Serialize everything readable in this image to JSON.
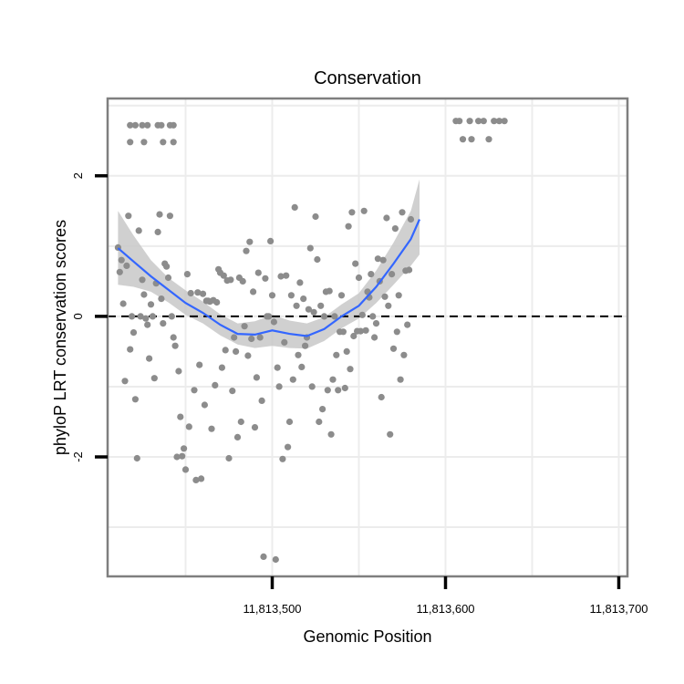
{
  "chart_data": {
    "type": "scatter",
    "title": "Conservation",
    "xlabel": "Genomic Position",
    "ylabel": "phyloP LRT conservation scores",
    "xlim": [
      11813405,
      11813705
    ],
    "ylim": [
      -3.7,
      3.1
    ],
    "x_ticks": [
      {
        "value": 11813500,
        "label": "11,813,500"
      },
      {
        "value": 11813600,
        "label": "11,813,600"
      },
      {
        "value": 11813700,
        "label": "11,813,700"
      }
    ],
    "y_ticks": [
      {
        "value": -2,
        "label": "-2"
      },
      {
        "value": 0,
        "label": "0"
      },
      {
        "value": 2,
        "label": "2"
      }
    ],
    "minor_grid_x": [
      11813450,
      11813550,
      11813650
    ],
    "minor_grid_y": [
      -3,
      -1,
      1,
      3
    ],
    "reference_line_y": 0,
    "grid": true,
    "colors": {
      "points": "#8c8c8c",
      "smooth_line": "#3366ff",
      "confidence_band": "#c8c8c8",
      "grid": "#ececec",
      "panel_border": "#7f7f7f",
      "reference_line": "#000000"
    },
    "points": [
      [
        11813418,
        2.72
      ],
      [
        11813421,
        2.72
      ],
      [
        11813425,
        2.72
      ],
      [
        11813428,
        2.72
      ],
      [
        11813434,
        2.72
      ],
      [
        11813436,
        2.72
      ],
      [
        11813441,
        2.72
      ],
      [
        11813443,
        2.72
      ],
      [
        11813418,
        2.48
      ],
      [
        11813426,
        2.48
      ],
      [
        11813437,
        2.48
      ],
      [
        11813443,
        2.48
      ],
      [
        11813606,
        2.78
      ],
      [
        11813608,
        2.78
      ],
      [
        11813614,
        2.78
      ],
      [
        11813619,
        2.78
      ],
      [
        11813622,
        2.78
      ],
      [
        11813628,
        2.78
      ],
      [
        11813631,
        2.78
      ],
      [
        11813634,
        2.78
      ],
      [
        11813610,
        2.52
      ],
      [
        11813615,
        2.52
      ],
      [
        11813625,
        2.52
      ],
      [
        11813411,
        0.98
      ],
      [
        11813412,
        0.63
      ],
      [
        11813413,
        0.8
      ],
      [
        11813414,
        0.18
      ],
      [
        11813415,
        -0.92
      ],
      [
        11813416,
        0.72
      ],
      [
        11813417,
        1.43
      ],
      [
        11813418,
        -0.47
      ],
      [
        11813419,
        0.0
      ],
      [
        11813420,
        -0.23
      ],
      [
        11813421,
        -1.18
      ],
      [
        11813422,
        -2.02
      ],
      [
        11813423,
        1.22
      ],
      [
        11813424,
        0.0
      ],
      [
        11813425,
        0.52
      ],
      [
        11813426,
        0.31
      ],
      [
        11813427,
        -0.03
      ],
      [
        11813428,
        -0.12
      ],
      [
        11813429,
        -0.6
      ],
      [
        11813430,
        0.17
      ],
      [
        11813431,
        0.0
      ],
      [
        11813432,
        -0.88
      ],
      [
        11813433,
        0.47
      ],
      [
        11813434,
        1.2
      ],
      [
        11813435,
        1.45
      ],
      [
        11813436,
        0.25
      ],
      [
        11813437,
        -0.1
      ],
      [
        11813438,
        0.75
      ],
      [
        11813439,
        0.71
      ],
      [
        11813440,
        0.55
      ],
      [
        11813441,
        1.43
      ],
      [
        11813442,
        0.0
      ],
      [
        11813443,
        -0.3
      ],
      [
        11813444,
        -0.42
      ],
      [
        11813445,
        -2.0
      ],
      [
        11813446,
        -0.78
      ],
      [
        11813447,
        -1.43
      ],
      [
        11813448,
        -1.99
      ],
      [
        11813449,
        -1.88
      ],
      [
        11813450,
        -2.18
      ],
      [
        11813451,
        0.6
      ],
      [
        11813452,
        -1.57
      ],
      [
        11813453,
        0.33
      ],
      [
        11813455,
        -1.05
      ],
      [
        11813456,
        -2.33
      ],
      [
        11813457,
        0.34
      ],
      [
        11813458,
        -0.69
      ],
      [
        11813459,
        -2.31
      ],
      [
        11813460,
        0.32
      ],
      [
        11813461,
        -1.26
      ],
      [
        11813462,
        0.22
      ],
      [
        11813463,
        0.22
      ],
      [
        11813464,
        0.21
      ],
      [
        11813465,
        -1.6
      ],
      [
        11813466,
        0.23
      ],
      [
        11813467,
        -0.98
      ],
      [
        11813468,
        0.2
      ],
      [
        11813469,
        0.67
      ],
      [
        11813470,
        0.62
      ],
      [
        11813471,
        -0.73
      ],
      [
        11813472,
        0.58
      ],
      [
        11813473,
        -0.48
      ],
      [
        11813474,
        0.51
      ],
      [
        11813475,
        -2.02
      ],
      [
        11813476,
        0.52
      ],
      [
        11813477,
        -1.06
      ],
      [
        11813478,
        -0.3
      ],
      [
        11813479,
        -0.5
      ],
      [
        11813480,
        -1.72
      ],
      [
        11813481,
        0.55
      ],
      [
        11813482,
        -1.5
      ],
      [
        11813483,
        0.5
      ],
      [
        11813484,
        -0.14
      ],
      [
        11813485,
        0.93
      ],
      [
        11813486,
        -0.56
      ],
      [
        11813487,
        1.06
      ],
      [
        11813488,
        -0.32
      ],
      [
        11813489,
        0.35
      ],
      [
        11813490,
        -1.58
      ],
      [
        11813491,
        -0.87
      ],
      [
        11813492,
        0.62
      ],
      [
        11813493,
        -0.3
      ],
      [
        11813494,
        -1.2
      ],
      [
        11813495,
        -3.42
      ],
      [
        11813496,
        0.54
      ],
      [
        11813497,
        0.0
      ],
      [
        11813498,
        0.0
      ],
      [
        11813499,
        1.07
      ],
      [
        11813500,
        0.3
      ],
      [
        11813501,
        -0.08
      ],
      [
        11813502,
        -3.46
      ],
      [
        11813503,
        -0.73
      ],
      [
        11813504,
        -1.0
      ],
      [
        11813505,
        0.57
      ],
      [
        11813506,
        -2.03
      ],
      [
        11813507,
        -0.37
      ],
      [
        11813508,
        0.58
      ],
      [
        11813509,
        -1.86
      ],
      [
        11813510,
        -1.5
      ],
      [
        11813511,
        0.3
      ],
      [
        11813512,
        -0.9
      ],
      [
        11813513,
        1.55
      ],
      [
        11813514,
        0.15
      ],
      [
        11813515,
        -0.55
      ],
      [
        11813516,
        0.48
      ],
      [
        11813517,
        -0.72
      ],
      [
        11813518,
        0.25
      ],
      [
        11813519,
        -0.42
      ],
      [
        11813520,
        -0.3
      ],
      [
        11813521,
        0.1
      ],
      [
        11813522,
        0.97
      ],
      [
        11813523,
        -1.0
      ],
      [
        11813524,
        0.06
      ],
      [
        11813525,
        1.42
      ],
      [
        11813526,
        0.81
      ],
      [
        11813527,
        -1.5
      ],
      [
        11813528,
        0.15
      ],
      [
        11813529,
        -1.32
      ],
      [
        11813530,
        0.0
      ],
      [
        11813531,
        0.35
      ],
      [
        11813532,
        -1.05
      ],
      [
        11813533,
        0.36
      ],
      [
        11813534,
        -1.68
      ],
      [
        11813535,
        -0.9
      ],
      [
        11813536,
        0.0
      ],
      [
        11813537,
        -0.55
      ],
      [
        11813538,
        -1.05
      ],
      [
        11813539,
        -0.22
      ],
      [
        11813540,
        0.3
      ],
      [
        11813541,
        -0.22
      ],
      [
        11813542,
        -1.02
      ],
      [
        11813543,
        -0.5
      ],
      [
        11813544,
        1.28
      ],
      [
        11813545,
        -0.75
      ],
      [
        11813546,
        1.48
      ],
      [
        11813547,
        -0.28
      ],
      [
        11813548,
        0.75
      ],
      [
        11813549,
        -0.21
      ],
      [
        11813550,
        0.55
      ],
      [
        11813551,
        -0.21
      ],
      [
        11813552,
        0.02
      ],
      [
        11813553,
        1.5
      ],
      [
        11813554,
        -0.2
      ],
      [
        11813555,
        0.35
      ],
      [
        11813556,
        0.27
      ],
      [
        11813557,
        0.6
      ],
      [
        11813558,
        0.0
      ],
      [
        11813559,
        -0.3
      ],
      [
        11813560,
        -0.1
      ],
      [
        11813561,
        0.82
      ],
      [
        11813562,
        0.5
      ],
      [
        11813563,
        -1.15
      ],
      [
        11813564,
        0.8
      ],
      [
        11813565,
        0.28
      ],
      [
        11813566,
        1.4
      ],
      [
        11813567,
        0.15
      ],
      [
        11813568,
        -1.68
      ],
      [
        11813569,
        0.6
      ],
      [
        11813570,
        -0.46
      ],
      [
        11813571,
        1.25
      ],
      [
        11813572,
        -0.22
      ],
      [
        11813573,
        0.3
      ],
      [
        11813574,
        -0.9
      ],
      [
        11813575,
        1.48
      ],
      [
        11813576,
        -0.55
      ],
      [
        11813577,
        0.65
      ],
      [
        11813578,
        -0.12
      ],
      [
        11813579,
        0.66
      ],
      [
        11813580,
        1.38
      ]
    ],
    "smooth_line": [
      [
        11813411,
        0.97
      ],
      [
        11813420,
        0.78
      ],
      [
        11813430,
        0.57
      ],
      [
        11813440,
        0.38
      ],
      [
        11813450,
        0.19
      ],
      [
        11813460,
        0.05
      ],
      [
        11813470,
        -0.12
      ],
      [
        11813480,
        -0.25
      ],
      [
        11813490,
        -0.26
      ],
      [
        11813500,
        -0.2
      ],
      [
        11813510,
        -0.25
      ],
      [
        11813520,
        -0.28
      ],
      [
        11813530,
        -0.18
      ],
      [
        11813540,
        0.0
      ],
      [
        11813550,
        0.15
      ],
      [
        11813560,
        0.42
      ],
      [
        11813570,
        0.75
      ],
      [
        11813580,
        1.1
      ],
      [
        11813585,
        1.38
      ]
    ],
    "confidence_band": [
      [
        11813411,
        0.45,
        1.5
      ],
      [
        11813420,
        0.42,
        1.15
      ],
      [
        11813430,
        0.35,
        0.8
      ],
      [
        11813440,
        0.2,
        0.55
      ],
      [
        11813450,
        0.02,
        0.37
      ],
      [
        11813460,
        -0.1,
        0.21
      ],
      [
        11813470,
        -0.27,
        0.03
      ],
      [
        11813480,
        -0.4,
        -0.1
      ],
      [
        11813490,
        -0.45,
        -0.07
      ],
      [
        11813500,
        -0.42,
        0.02
      ],
      [
        11813510,
        -0.45,
        -0.06
      ],
      [
        11813520,
        -0.46,
        -0.1
      ],
      [
        11813530,
        -0.35,
        -0.01
      ],
      [
        11813540,
        -0.17,
        0.17
      ],
      [
        11813550,
        -0.03,
        0.33
      ],
      [
        11813560,
        0.19,
        0.65
      ],
      [
        11813570,
        0.45,
        1.05
      ],
      [
        11813580,
        0.72,
        1.5
      ],
      [
        11813585,
        0.88,
        1.95
      ]
    ]
  }
}
